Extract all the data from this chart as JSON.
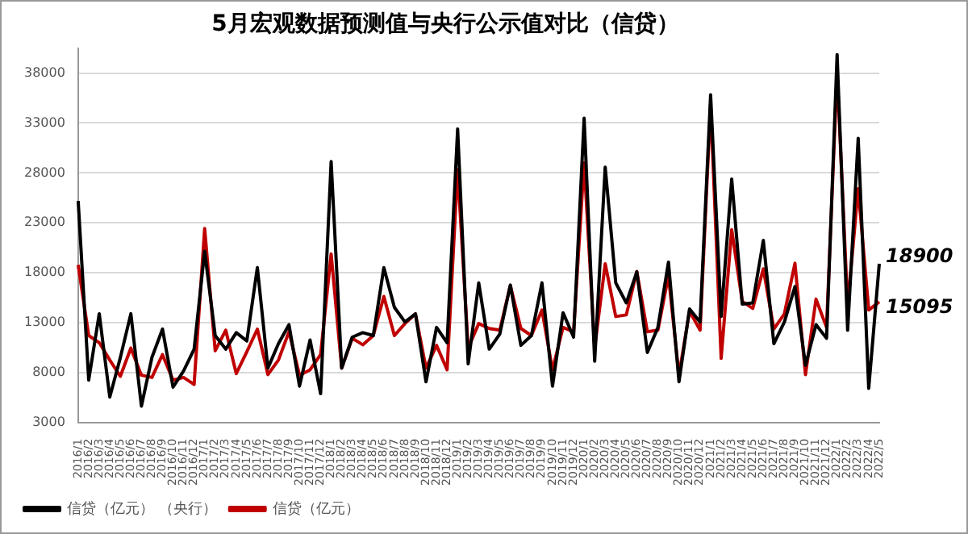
{
  "chart_data": {
    "type": "line",
    "title": "5月宏观数据预测值与央行公示值对比（信贷）",
    "categories": [
      "2016/1",
      "2016/2",
      "2016/3",
      "2016/4",
      "2016/5",
      "2016/6",
      "2016/7",
      "2016/8",
      "2016/9",
      "2016/10",
      "2016/11",
      "2016/12",
      "2017/1",
      "2017/2",
      "2017/3",
      "2017/4",
      "2017/5",
      "2017/6",
      "2017/7",
      "2017/8",
      "2017/9",
      "2017/10",
      "2017/11",
      "2017/12",
      "2018/1",
      "2018/2",
      "2018/3",
      "2018/4",
      "2018/5",
      "2018/6",
      "2018/7",
      "2018/8",
      "2018/9",
      "2018/10",
      "2018/11",
      "2018/12",
      "2019/1",
      "2019/2",
      "2019/3",
      "2019/4",
      "2019/5",
      "2019/6",
      "2019/7",
      "2019/8",
      "2019/9",
      "2019/10",
      "2019/11",
      "2019/12",
      "2020/1",
      "2020/2",
      "2020/3",
      "2020/4",
      "2020/5",
      "2020/6",
      "2020/7",
      "2020/8",
      "2020/9",
      "2020/10",
      "2020/11",
      "2020/12",
      "2021/1",
      "2021/2",
      "2021/3",
      "2021/4",
      "2021/5",
      "2021/6",
      "2021/7",
      "2021/8",
      "2021/9",
      "2021/10",
      "2021/11",
      "2021/12",
      "2022/1",
      "2022/2",
      "2022/3",
      "2022/4",
      "2022/5"
    ],
    "series": [
      {
        "name": "信贷（亿元） （央行）",
        "color": "#000000",
        "values": [
          25200,
          7250,
          13900,
          5560,
          9500,
          13900,
          4640,
          9530,
          12360,
          6540,
          8170,
          10350,
          20150,
          11710,
          10350,
          12000,
          11170,
          18510,
          8450,
          10900,
          12800,
          6650,
          11270,
          5890,
          29130,
          8450,
          11550,
          12000,
          11710,
          18510,
          14540,
          13070,
          13890,
          7080,
          12530,
          11000,
          32400,
          8880,
          16990,
          10350,
          11870,
          16770,
          10730,
          11710,
          16990,
          6650,
          14000,
          11550,
          33480,
          9150,
          28580,
          16990,
          14980,
          18080,
          10020,
          12530,
          19060,
          7080,
          14380,
          13070,
          35820,
          13620,
          27390,
          14870,
          14980,
          21240,
          10900,
          13070,
          16610,
          8720,
          12800,
          11440,
          39850,
          12250,
          31470,
          6430,
          18900
        ],
        "value_labels": [
          null,
          null,
          null,
          null,
          null,
          null,
          null,
          null,
          null,
          null,
          null,
          null,
          null,
          null,
          null,
          null,
          null,
          null,
          null,
          null,
          null,
          null,
          null,
          null,
          null,
          null,
          null,
          null,
          null,
          null,
          null,
          null,
          null,
          null,
          null,
          null,
          null,
          null,
          null,
          null,
          null,
          null,
          null,
          null,
          null,
          null,
          null,
          null,
          null,
          null,
          null,
          null,
          null,
          null,
          null,
          null,
          null,
          null,
          null,
          null,
          null,
          null,
          null,
          null,
          null,
          null,
          null,
          null,
          null,
          null,
          null,
          null,
          null,
          null,
          null,
          null,
          "18900"
        ]
      },
      {
        "name": "信贷（亿元）",
        "color": "#c00000",
        "values": [
          18790,
          11710,
          11000,
          9260,
          7630,
          10460,
          7740,
          7520,
          9800,
          7250,
          7520,
          6810,
          22430,
          10190,
          12250,
          7900,
          10080,
          12360,
          7800,
          9260,
          12090,
          7740,
          8280,
          9800,
          19880,
          8450,
          11440,
          10790,
          11710,
          15630,
          11710,
          12910,
          13890,
          8450,
          10730,
          8280,
          28310,
          10460,
          12910,
          12420,
          12250,
          16720,
          12420,
          11710,
          14270,
          8280,
          12530,
          12090,
          29020,
          10460,
          18900,
          13620,
          13780,
          18130,
          12090,
          12250,
          17700,
          7740,
          14160,
          12250,
          34840,
          9420,
          22320,
          15140,
          14430,
          18400,
          12360,
          13890,
          18950,
          7800,
          15360,
          12530,
          38000,
          14700,
          26410,
          14270,
          15095
        ],
        "value_labels": [
          null,
          null,
          null,
          null,
          null,
          null,
          null,
          null,
          null,
          null,
          null,
          null,
          null,
          null,
          null,
          null,
          null,
          null,
          null,
          null,
          null,
          null,
          null,
          null,
          null,
          null,
          null,
          null,
          null,
          null,
          null,
          null,
          null,
          null,
          null,
          null,
          null,
          null,
          null,
          null,
          null,
          null,
          null,
          null,
          null,
          null,
          null,
          null,
          null,
          null,
          null,
          null,
          null,
          null,
          null,
          null,
          null,
          null,
          null,
          null,
          null,
          null,
          null,
          null,
          null,
          null,
          null,
          null,
          null,
          null,
          null,
          null,
          null,
          null,
          null,
          null,
          "15095"
        ]
      }
    ],
    "ylim": [
      3000,
      40500
    ],
    "yticks": [
      3000,
      8000,
      13000,
      18000,
      23000,
      28000,
      33000,
      38000
    ],
    "grid": "y",
    "legend": "bottom",
    "marker": "none",
    "line_style": "solid"
  }
}
